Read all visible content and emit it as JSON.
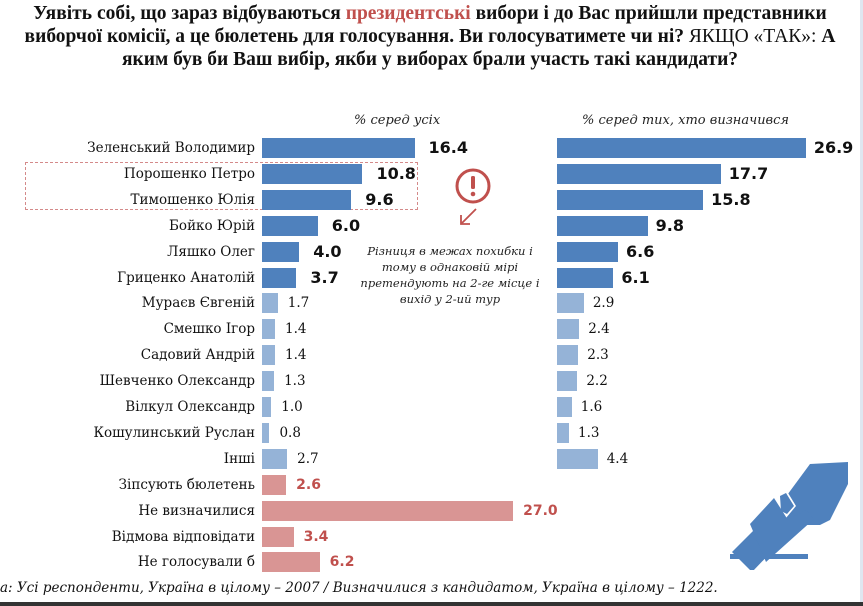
{
  "title": {
    "part1": "Уявіть собі, що зараз відбуваються ",
    "accent": "президентські",
    "part2": " вибори і до Вас прийшли представники виборчої комісії, а це бюлетень для голосування. Ви голосуватимете чи ні? ",
    "plain": "ЯКЩО «ТАК»:",
    "part3": " А яким був би Ваш вибір, якби у виборах брали участь такі кандидати?"
  },
  "colors": {
    "leading": "#4f81bd",
    "minor": "#95b3d7",
    "other": "#d99594",
    "red_text": "#c0504d"
  },
  "chart_data": [
    {
      "type": "bar",
      "orientation": "horizontal",
      "title": "% серед усіх",
      "categories": [
        "Зеленський Володимир",
        "Порошенко Петро",
        "Тимошенко Юлія",
        "Бойко Юрій",
        "Ляшко Олег",
        "Гриценко Анатолій",
        "Мураєв Євгеній",
        "Смешко Ігор",
        "Садовий Андрій",
        "Шевченко Олександр",
        "Вілкул Олександр",
        "Кошулинський Руслан",
        "Інші",
        "Зіпсують бюлетень",
        "Не визначилися",
        "Відмова відповідати",
        "Не голосували б"
      ],
      "values": [
        16.4,
        10.8,
        9.6,
        6.0,
        4.0,
        3.7,
        1.7,
        1.4,
        1.4,
        1.3,
        1.0,
        0.8,
        2.7,
        2.6,
        27.0,
        3.4,
        6.2
      ],
      "labels": [
        "16.4",
        "10.8",
        "9.6",
        "6.0",
        "4.0",
        "3.7",
        "1.7",
        "1.4",
        "1.4",
        "1.3",
        "1.0",
        "0.8",
        "2.7",
        "2.6",
        "27.0",
        "3.4",
        "6.2"
      ],
      "groups": [
        "leading",
        "leading",
        "leading",
        "leading",
        "leading",
        "leading",
        "minor",
        "minor",
        "minor",
        "minor",
        "minor",
        "minor",
        "minor",
        "other",
        "other",
        "other",
        "other"
      ]
    },
    {
      "type": "bar",
      "orientation": "horizontal",
      "title": "% серед тих, хто визначився",
      "categories": [
        "Зеленський Володимир",
        "Порошенко Петро",
        "Тимошенко Юлія",
        "Бойко Юрій",
        "Ляшко Олег",
        "Гриценко Анатолій",
        "Мураєв Євгеній",
        "Смешко Ігор",
        "Садовий Андрій",
        "Шевченко Олександр",
        "Вілкул Олександр",
        "Кошулинський Руслан",
        "Інші"
      ],
      "values": [
        26.9,
        17.7,
        15.8,
        9.8,
        6.6,
        6.1,
        2.9,
        2.4,
        2.3,
        2.2,
        1.6,
        1.3,
        4.4
      ],
      "labels": [
        "26.9",
        "17.7",
        "15.8",
        "9.8",
        "6.6",
        "6.1",
        "2.9",
        "2.4",
        "2.3",
        "2.2",
        "1.6",
        "1.3",
        "4.4"
      ],
      "groups": [
        "leading",
        "leading",
        "leading",
        "leading",
        "leading",
        "leading",
        "minor",
        "minor",
        "minor",
        "minor",
        "minor",
        "minor",
        "minor"
      ]
    }
  ],
  "note": "Різниця в межах похибки і тому в однаковій мірі претендують на 2-ге місце і вихід у 2-ий тур",
  "footer": "а: Усі респонденти, Україна в цілому – 2007 / Визначилися з кандидатом, Україна в цілому – 1222.",
  "icons": {
    "alert": "exclamation-circle-icon",
    "ballot": "ballot-box-hand-icon"
  }
}
